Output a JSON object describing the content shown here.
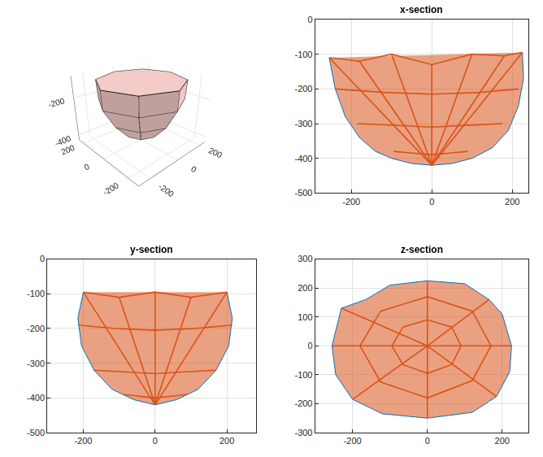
{
  "chart_data": [
    {
      "type": "mesh3d",
      "color": "#f0c8c4",
      "rings": [
        {
          "z": -110,
          "x": [
            230,
            165,
            0,
            -175,
            -255,
            -180,
            0,
            170
          ],
          "y": [
            0,
            160,
            230,
            165,
            0,
            -175,
            -250,
            -170
          ]
        },
        {
          "z": -200,
          "x": [
            225,
            160,
            0,
            -170,
            -250,
            -175,
            0,
            165
          ],
          "y": [
            0,
            158,
            225,
            160,
            0,
            -170,
            -245,
            -165
          ]
        },
        {
          "z": -300,
          "x": [
            170,
            120,
            0,
            -125,
            -180,
            -125,
            0,
            120
          ],
          "y": [
            0,
            120,
            170,
            120,
            0,
            -125,
            -180,
            -120
          ]
        },
        {
          "z": -380,
          "x": [
            90,
            65,
            0,
            -65,
            -95,
            -65,
            0,
            65
          ],
          "y": [
            0,
            65,
            90,
            65,
            0,
            -65,
            -95,
            -65
          ]
        }
      ],
      "bottom": [
        0,
        0,
        -420
      ],
      "xlim": [
        -270,
        250
      ],
      "xticks": [
        -200,
        0,
        200
      ],
      "ylim": [
        -270,
        250
      ],
      "yticks": [
        -200,
        0,
        200
      ],
      "zlim": [
        -430,
        -90
      ],
      "zticks": [
        -400,
        -200
      ],
      "grid": true
    },
    {
      "type": "line",
      "title": "x-section",
      "xlim": [
        -290,
        240
      ],
      "xticks": [
        -200,
        0,
        200
      ],
      "ylim": [
        -500,
        0
      ],
      "yticks": [
        -500,
        -400,
        -300,
        -200,
        -100,
        0
      ],
      "grid": true,
      "series": [
        {
          "color": "#d95319",
          "x": [
            -255,
            -180,
            -100,
            0,
            100,
            180,
            225,
            null,
            -240,
            -120,
            0,
            120,
            215,
            null,
            -185,
            -90,
            0,
            90,
            175,
            null,
            -95,
            -45,
            0,
            45,
            90,
            null,
            0,
            -255,
            null,
            0,
            -180,
            null,
            0,
            -100,
            null,
            0,
            0,
            null,
            0,
            100,
            null,
            0,
            180,
            null,
            0,
            225
          ],
          "y": [
            -110,
            -120,
            -100,
            -130,
            -100,
            -105,
            -95,
            null,
            -200,
            -210,
            -215,
            -210,
            -200,
            null,
            -300,
            -305,
            -310,
            -305,
            -300,
            null,
            -380,
            -385,
            -390,
            -385,
            -380,
            null,
            -420,
            -110,
            null,
            -420,
            -120,
            null,
            -420,
            -100,
            null,
            -420,
            -130,
            null,
            -420,
            -100,
            null,
            -420,
            -105,
            null,
            -420,
            -95
          ]
        },
        {
          "color": "#0072bd",
          "x": [
            -255,
            -240,
            -215,
            -180,
            -140,
            -100,
            -50,
            0,
            50,
            100,
            150,
            190,
            215,
            228,
            225
          ],
          "y": [
            -110,
            -200,
            -280,
            -340,
            -380,
            -400,
            -415,
            -420,
            -415,
            -400,
            -370,
            -320,
            -250,
            -170,
            -95
          ]
        }
      ]
    },
    {
      "type": "line",
      "title": "y-section",
      "xlim": [
        -300,
        280
      ],
      "xticks": [
        -200,
        0,
        200
      ],
      "ylim": [
        -500,
        0
      ],
      "yticks": [
        -500,
        -400,
        -300,
        -200,
        -100,
        0
      ],
      "grid": true,
      "series": [
        {
          "color": "#d95319",
          "x": [
            -200,
            -100,
            0,
            100,
            200,
            null,
            -215,
            -110,
            0,
            110,
            215,
            null,
            -170,
            -85,
            0,
            85,
            170,
            null,
            -90,
            -45,
            0,
            45,
            90,
            null,
            0,
            -200,
            null,
            0,
            -100,
            null,
            0,
            0,
            null,
            0,
            100,
            null,
            0,
            200
          ],
          "y": [
            -95,
            -110,
            -95,
            -110,
            -95,
            null,
            -190,
            -200,
            -205,
            -200,
            -190,
            null,
            -320,
            -325,
            -330,
            -325,
            -320,
            null,
            -390,
            -395,
            -400,
            -395,
            -390,
            null,
            -420,
            -95,
            null,
            -420,
            -110,
            null,
            -420,
            -95,
            null,
            -420,
            -110,
            null,
            -420,
            -95
          ]
        },
        {
          "color": "#0072bd",
          "x": [
            -200,
            -215,
            -205,
            -170,
            -120,
            -60,
            0,
            60,
            120,
            170,
            205,
            215,
            200
          ],
          "y": [
            -95,
            -170,
            -250,
            -320,
            -375,
            -405,
            -420,
            -405,
            -375,
            -320,
            -250,
            -170,
            -95
          ]
        }
      ]
    },
    {
      "type": "line",
      "title": "z-section",
      "xlim": [
        -300,
        270
      ],
      "xticks": [
        -200,
        0,
        200
      ],
      "ylim": [
        -300,
        300
      ],
      "yticks": [
        -300,
        -200,
        -100,
        0,
        100,
        200,
        300
      ],
      "grid": true,
      "series": [
        {
          "color": "#d95319",
          "x": [
            170,
            120,
            0,
            -125,
            -180,
            -125,
            0,
            120,
            170,
            null,
            90,
            65,
            0,
            -65,
            -95,
            -65,
            0,
            65,
            90,
            null,
            0,
            225,
            null,
            0,
            165,
            null,
            0,
            0,
            null,
            0,
            -230,
            null,
            0,
            -255,
            null,
            0,
            -200,
            null,
            0,
            0,
            null,
            0,
            185
          ],
          "y": [
            0,
            120,
            170,
            120,
            0,
            -125,
            -180,
            -120,
            0,
            null,
            0,
            65,
            90,
            65,
            0,
            -65,
            -95,
            -65,
            0,
            null,
            0,
            0,
            null,
            0,
            160,
            null,
            0,
            225,
            null,
            0,
            130,
            null,
            0,
            0,
            null,
            0,
            -185,
            null,
            0,
            -250,
            null,
            0,
            -175
          ]
        },
        {
          "color": "#0072bd",
          "x": [
            225,
            200,
            165,
            100,
            0,
            -100,
            -165,
            -230,
            -255,
            -245,
            -200,
            -120,
            0,
            120,
            185,
            220,
            225
          ],
          "y": [
            0,
            110,
            160,
            215,
            225,
            210,
            160,
            130,
            0,
            -100,
            -185,
            -235,
            -250,
            -230,
            -175,
            -90,
            0
          ]
        }
      ]
    }
  ]
}
